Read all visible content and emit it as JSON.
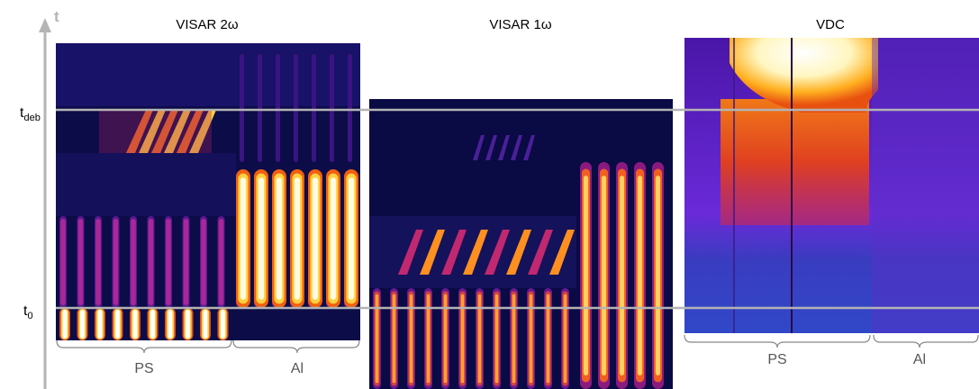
{
  "axis": {
    "label": "t"
  },
  "time_markers": [
    {
      "label": "t",
      "subscript": "deb"
    },
    {
      "label": "t",
      "subscript": "0"
    }
  ],
  "panels": [
    {
      "title": "VISAR 2ω",
      "regions": [
        "PS",
        "Al"
      ]
    },
    {
      "title": "VISAR 1ω"
    },
    {
      "title": "VDC",
      "regions": [
        "PS",
        "Al"
      ]
    }
  ]
}
